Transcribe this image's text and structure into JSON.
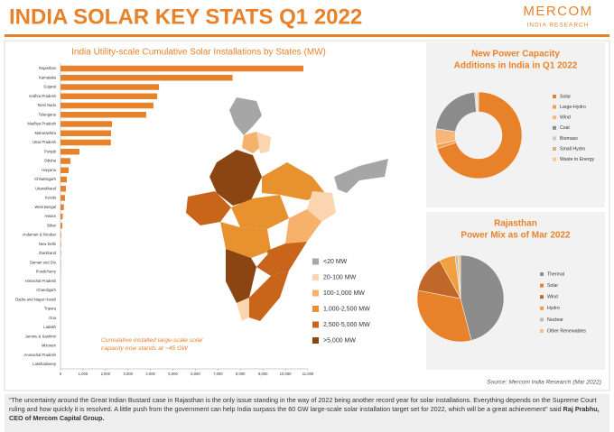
{
  "header": {
    "title": "INDIA SOLAR KEY STATS Q1 2022",
    "brand": "MERCOM",
    "brand_sub": "INDIA RESEARCH"
  },
  "chart_data": [
    {
      "type": "bar",
      "horizontal": true,
      "title": "India Utility-scale Cumulative Solar Installations by States (MW)",
      "color": "#e8822a",
      "categories": [
        "Rajasthan",
        "Karnataka",
        "Gujarat",
        "Andhra Pradesh",
        "Tamil Nadu",
        "Telangana",
        "Madhya Pradesh",
        "Maharashtra",
        "Uttar Pradesh",
        "Punjab",
        "Odisha",
        "Haryana",
        "Chhattisgarh",
        "Uttarakhand",
        "Kerala",
        "West Bengal",
        "Assam",
        "Bihar",
        "Andaman & Nicobar",
        "New Delhi",
        "Jharkhand",
        "Daman and Diu",
        "Pondicherry",
        "Himachal Pradesh",
        "Chandigarh",
        "Dadra and Nagar Haveli",
        "Tripura",
        "Goa",
        "Ladakh",
        "Jammu & Kashmir",
        "Mizoram",
        "Arunachal Pradesh",
        "Lakshadweep"
      ],
      "values": [
        10800,
        7650,
        4380,
        4300,
        4130,
        3810,
        2290,
        2250,
        2240,
        840,
        440,
        360,
        280,
        240,
        200,
        150,
        100,
        80,
        30,
        25,
        20,
        15,
        12,
        10,
        8,
        6,
        5,
        4,
        3,
        2,
        1,
        1,
        1
      ],
      "xlim": [
        0,
        11000
      ],
      "xticks": [
        0,
        {
          "value": 1000,
          "label": "1,000"
        },
        {
          "value": 2000,
          "label": "2,000"
        },
        {
          "value": 3000,
          "label": "3,000"
        },
        {
          "value": 4000,
          "label": "4,000"
        },
        {
          "value": 5000,
          "label": "5,000"
        },
        {
          "value": 6000,
          "label": "6,000"
        },
        {
          "value": 7000,
          "label": "7,000"
        },
        {
          "value": 8000,
          "label": "8,000"
        },
        {
          "value": 9000,
          "label": "9,000"
        },
        {
          "value": 10000,
          "label": "10,000"
        },
        {
          "value": 11000,
          "label": "11,000"
        }
      ],
      "annotation": [
        "Cumulative installed large-scale solar",
        "capacity now stands at ~45 GW"
      ]
    },
    {
      "type": "donut",
      "title": [
        "New Power Capacity",
        "Additions in India in Q1 2022"
      ],
      "categories": [
        "Solar",
        "Large-Hydro",
        "Wind",
        "Coal",
        "Biomass",
        "Small Hydro",
        "Waste to Energy"
      ],
      "values": [
        70,
        1.5,
        6,
        21,
        0.5,
        0.3,
        0.7
      ],
      "colors": [
        "#e8822a",
        "#f0a050",
        "#f5b87a",
        "#8c8c8c",
        "#c8c8c8",
        "#d9b28c",
        "#f7c98f"
      ]
    },
    {
      "type": "pie",
      "title": [
        "Rajasthan",
        "Power Mix as of Mar 2022"
      ],
      "categories": [
        "Thermal",
        "Solar",
        "Wind",
        "Hydro",
        "Nuclear",
        "Other Renewables"
      ],
      "values": [
        46,
        32,
        14,
        6,
        1,
        1
      ],
      "colors": [
        "#8c8c8c",
        "#e8822a",
        "#c0682a",
        "#f0a040",
        "#bdbdbd",
        "#f5c080"
      ]
    }
  ],
  "map": {
    "legend": [
      {
        "label": "<20 MW",
        "color": "#a6a6a6"
      },
      {
        "label": "20-100 MW",
        "color": "#fbd5b0"
      },
      {
        "label": "100-1,000 MW",
        "color": "#f6b26b"
      },
      {
        "label": "1,000-2,500 MW",
        "color": "#e8912f"
      },
      {
        "label": "2,500-5,000 MW",
        "color": "#c8651b"
      },
      {
        "label": ">5,000 MW",
        "color": "#8b4513"
      }
    ]
  },
  "source": "Source: Mercom India Research (Mar 2022)",
  "quote": {
    "text": "“The uncertainty around the Great Indian Bustard case in Rajasthan is the only issue standing in the way of 2022 being another record year for solar installations. Everything depends on the Supreme Court ruling and how quickly it is resolved. A little push from the government can help India surpass the 60 GW large-scale solar installation target set for 2022, which will be a great achievement” said",
    "speaker": "Raj Prabhu, CEO of Mercom Capital Group."
  }
}
